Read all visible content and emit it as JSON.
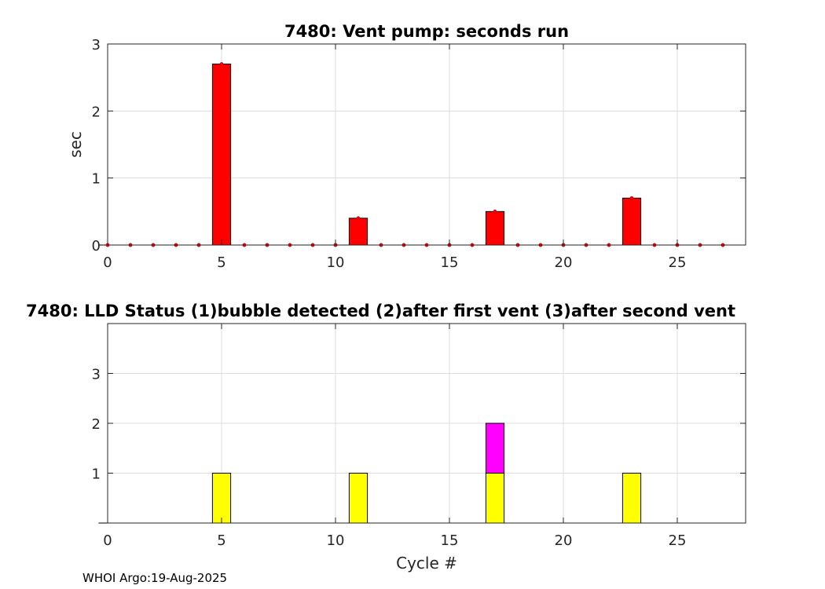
{
  "footer": "WHOI Argo:19-Aug-2025",
  "chart_data": [
    {
      "type": "bar",
      "title": "7480: Vent pump: seconds run",
      "xlabel": "",
      "ylabel": "sec",
      "xlim": [
        0,
        28
      ],
      "ylim": [
        0,
        3
      ],
      "xticks": [
        0,
        5,
        10,
        15,
        20,
        25
      ],
      "yticks": [
        0,
        1,
        2,
        3
      ],
      "grid": true,
      "x": [
        0,
        1,
        2,
        3,
        4,
        5,
        6,
        7,
        8,
        9,
        10,
        11,
        12,
        13,
        14,
        15,
        16,
        17,
        18,
        19,
        20,
        21,
        22,
        23,
        24,
        25,
        26,
        27
      ],
      "values": [
        0,
        0,
        0,
        0,
        0,
        2.7,
        0,
        0,
        0,
        0,
        0,
        0.4,
        0,
        0,
        0,
        0,
        0,
        0.5,
        0,
        0,
        0,
        0,
        0,
        0.7,
        0,
        0,
        0,
        0
      ],
      "color": "#ff0000",
      "marker_color": "#ff0000"
    },
    {
      "type": "bar",
      "stacked": true,
      "title": "7480: LLD Status   (1)bubble detected   (2)after first vent  (3)after second vent",
      "xlabel": "Cycle #",
      "ylabel": "",
      "xlim": [
        0,
        28
      ],
      "ylim": [
        0,
        4
      ],
      "xticks": [
        0,
        5,
        10,
        15,
        20,
        25
      ],
      "yticks": [
        1,
        2,
        3
      ],
      "grid": true,
      "x": [
        0,
        1,
        2,
        3,
        4,
        5,
        6,
        7,
        8,
        9,
        10,
        11,
        12,
        13,
        14,
        15,
        16,
        17,
        18,
        19,
        20,
        21,
        22,
        23,
        24,
        25,
        26,
        27
      ],
      "series": [
        {
          "color": "#ffff00",
          "values": [
            0,
            0,
            0,
            0,
            0,
            1,
            0,
            0,
            0,
            0,
            0,
            1,
            0,
            0,
            0,
            0,
            0,
            1,
            0,
            0,
            0,
            0,
            0,
            1,
            0,
            0,
            0,
            0
          ]
        },
        {
          "color": "#ff00ff",
          "values": [
            0,
            0,
            0,
            0,
            0,
            0,
            0,
            0,
            0,
            0,
            0,
            0,
            0,
            0,
            0,
            0,
            0,
            1,
            0,
            0,
            0,
            0,
            0,
            0,
            0,
            0,
            0,
            0
          ]
        },
        {
          "color": "#00ffff",
          "values": [
            0,
            0,
            0,
            0,
            0,
            0,
            0,
            0,
            0,
            0,
            0,
            0,
            0,
            0,
            0,
            0,
            0,
            0,
            0,
            0,
            0,
            0,
            0,
            0,
            0,
            0,
            0,
            0
          ]
        }
      ]
    }
  ]
}
